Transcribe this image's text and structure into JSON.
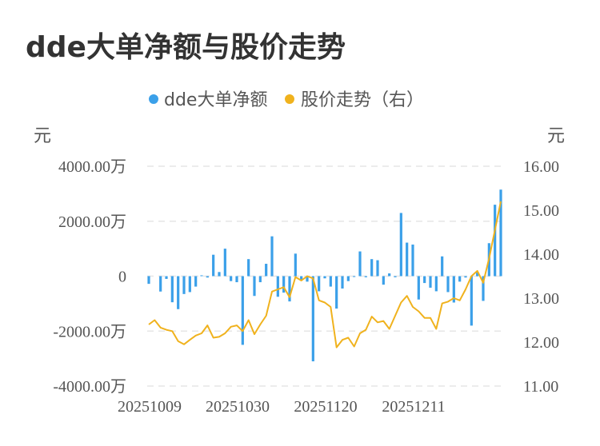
{
  "title": "dde大单净额与股价走势",
  "colors": {
    "bar": "#3ba0e9",
    "line": "#f0b21d",
    "grid": "#e6e6e6"
  },
  "chart_data": {
    "type": "bar+line",
    "title": "dde大单净额与股价走势",
    "legend": {
      "placement": "top",
      "items": [
        {
          "name": "dde大单净额",
          "type": "bar",
          "color": "#3ba0e9"
        },
        {
          "name": "股价走势（右）",
          "type": "line",
          "color": "#f0b21d"
        }
      ]
    },
    "left_axis": {
      "unit": "元",
      "ylim": [
        -4000,
        4000
      ],
      "tick_values": [
        4000,
        2000,
        0,
        -2000,
        -4000
      ],
      "tick_labels": [
        "4000.00万",
        "2000.00万",
        "0",
        "-2000.00万",
        "-4000.00万"
      ]
    },
    "right_axis": {
      "unit": "元",
      "ylim": [
        11,
        16
      ],
      "tick_values": [
        16,
        15,
        14,
        13,
        12,
        11
      ],
      "tick_labels": [
        "16.00",
        "15.00",
        "14.00",
        "13.00",
        "12.00",
        "11.00"
      ]
    },
    "x_tick_labels": [
      {
        "label": "20251009",
        "index": 0
      },
      {
        "label": "20251030",
        "index": 15
      },
      {
        "label": "20251120",
        "index": 30
      },
      {
        "label": "20251211",
        "index": 45
      }
    ],
    "grid": true,
    "series": [
      {
        "name": "dde大单净额",
        "type": "bar",
        "axis": "left",
        "values": [
          -280,
          0,
          -560,
          -100,
          -950,
          -1200,
          -650,
          -580,
          -380,
          30,
          -50,
          780,
          150,
          1000,
          -180,
          -220,
          -2500,
          620,
          -720,
          -220,
          450,
          1450,
          -750,
          -600,
          -920,
          820,
          -150,
          -200,
          -3100,
          -550,
          -80,
          -380,
          -1180,
          -450,
          -180,
          -30,
          900,
          -40,
          620,
          580,
          -310,
          100,
          -40,
          2300,
          1220,
          1150,
          -850,
          -250,
          -420,
          -550,
          720,
          -580,
          -960,
          -200,
          -50,
          -1800,
          150,
          -900,
          1200,
          2600,
          3150
        ]
      },
      {
        "name": "股价走势（右）",
        "type": "line",
        "axis": "right",
        "values": [
          12.4,
          12.5,
          12.33,
          12.28,
          12.25,
          12.02,
          11.95,
          12.05,
          12.15,
          12.2,
          12.38,
          12.1,
          12.12,
          12.2,
          12.35,
          12.38,
          12.25,
          12.5,
          12.18,
          12.4,
          12.6,
          13.15,
          13.2,
          13.25,
          13.02,
          13.48,
          13.4,
          13.5,
          13.45,
          12.95,
          12.9,
          12.8,
          11.88,
          12.05,
          12.1,
          11.9,
          12.2,
          12.28,
          12.58,
          12.45,
          12.48,
          12.3,
          12.6,
          12.9,
          13.05,
          12.8,
          12.7,
          12.55,
          12.55,
          12.3,
          12.88,
          12.92,
          13.0,
          12.95,
          13.2,
          13.5,
          13.62,
          13.35,
          13.9,
          14.55,
          15.2
        ]
      }
    ]
  }
}
